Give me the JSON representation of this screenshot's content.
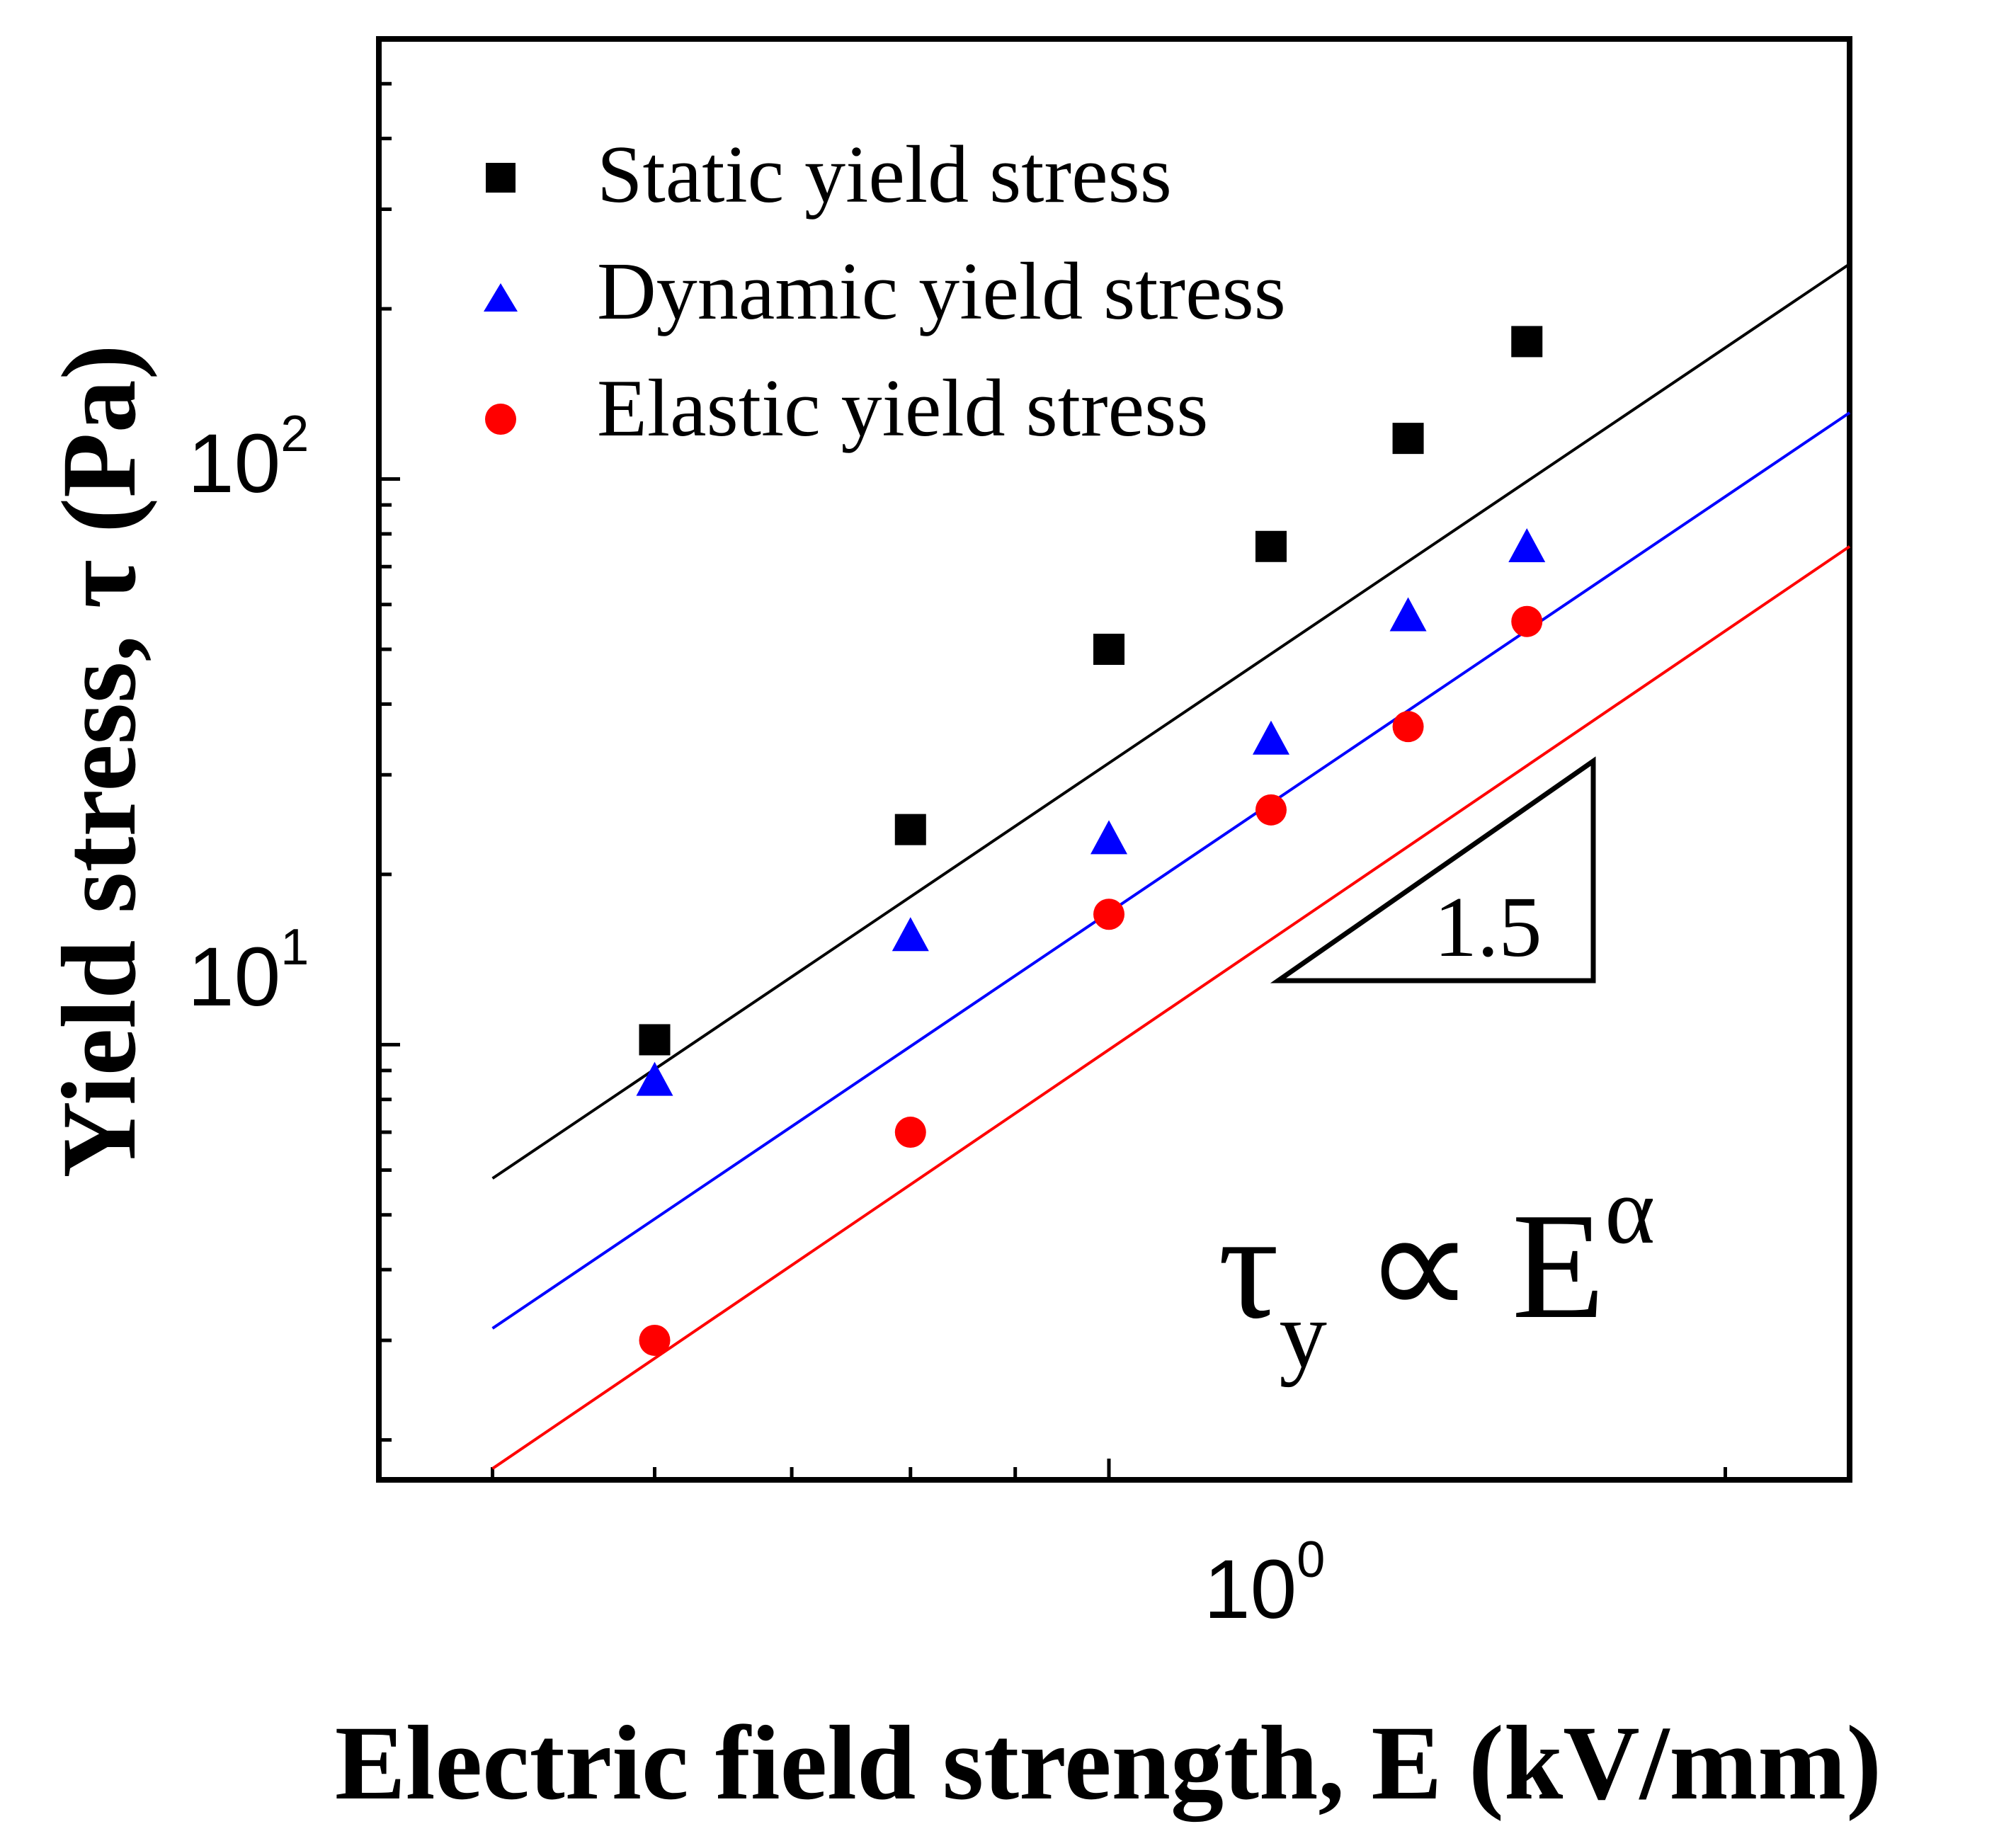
{
  "chart_data": {
    "type": "scatter",
    "xscale": "log",
    "yscale": "log",
    "xlim": [
      0.44,
      2.3
    ],
    "ylim": [
      1.7,
      600
    ],
    "xlabel": "Electric field strength, E (kV/mm)",
    "ylabel": "Yield stress, τ (Pa)",
    "x_ticks": [
      {
        "base": "10",
        "exp": "0",
        "value": 1
      }
    ],
    "y_ticks": [
      {
        "base": "10",
        "exp": "1",
        "value": 10
      },
      {
        "base": "10",
        "exp": "2",
        "value": 100
      }
    ],
    "legend_position": "top-left",
    "series": [
      {
        "name": "Static yield stress",
        "color": "#000000",
        "marker": "square",
        "x": [
          0.6,
          0.8,
          1.0,
          1.2,
          1.4,
          1.6
        ],
        "y": [
          10.2,
          24.0,
          50.0,
          76.0,
          118.0,
          175.0
        ],
        "fit": {
          "x": [
            0.5,
            2.3
          ],
          "y": [
            5.8,
            240.0
          ]
        }
      },
      {
        "name": "Dynamic yield stress",
        "color": "#0000ff",
        "marker": "triangle",
        "x": [
          0.6,
          0.8,
          1.0,
          1.2,
          1.4,
          1.6
        ],
        "y": [
          8.6,
          15.5,
          23.0,
          34.5,
          57.0,
          75.5
        ],
        "fit": {
          "x": [
            0.5,
            2.3
          ],
          "y": [
            3.15,
            131.0
          ]
        }
      },
      {
        "name": "Elastic yield stress",
        "color": "#ff0000",
        "marker": "circle",
        "x": [
          0.6,
          0.8,
          1.0,
          1.2,
          1.4,
          1.6
        ],
        "y": [
          3.0,
          7.0,
          17.0,
          26.0,
          36.5,
          56.0
        ],
        "fit": {
          "x": [
            0.5,
            2.3
          ],
          "y": [
            1.78,
            76.0
          ]
        }
      }
    ],
    "annotations": {
      "slope_label": "1.5",
      "equation": {
        "main": "τ",
        "sub": "y",
        "mid": " ∝ E",
        "sup": "α"
      }
    }
  }
}
